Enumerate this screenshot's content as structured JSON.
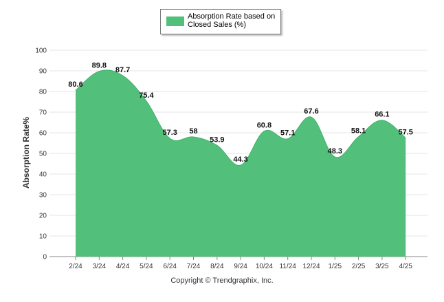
{
  "chart_data": {
    "type": "area",
    "categories": [
      "2/24",
      "3/24",
      "4/24",
      "5/24",
      "6/24",
      "7/24",
      "8/24",
      "9/24",
      "10/24",
      "11/24",
      "12/24",
      "1/25",
      "2/25",
      "3/25",
      "4/25"
    ],
    "series": [
      {
        "name": "Absorption Rate based on Closed Sales (%)",
        "values": [
          80.6,
          89.8,
          87.7,
          75.4,
          57.3,
          58,
          53.9,
          44.3,
          60.8,
          57.1,
          67.6,
          48.3,
          58.1,
          66.1,
          57.5
        ],
        "color": "#52bf7a"
      }
    ],
    "data_labels": [
      "80.6",
      "89.8",
      "87.7",
      "75.4",
      "57.3",
      "58",
      "53.9",
      "44.3",
      "60.8",
      "57.1",
      "67.6",
      "48.3",
      "58.1",
      "66.1",
      "57.5"
    ],
    "ylabel": "Absorption Rate%",
    "ylim": [
      0,
      100
    ],
    "yticks": [
      0,
      10,
      20,
      30,
      40,
      50,
      60,
      70,
      80,
      90,
      100
    ],
    "grid": true,
    "legend": {
      "label": "Absorption Rate based on Closed Sales (%)",
      "placement": "top-center"
    }
  },
  "footer": {
    "copyright": "Copyright © Trendgraphix, Inc."
  }
}
